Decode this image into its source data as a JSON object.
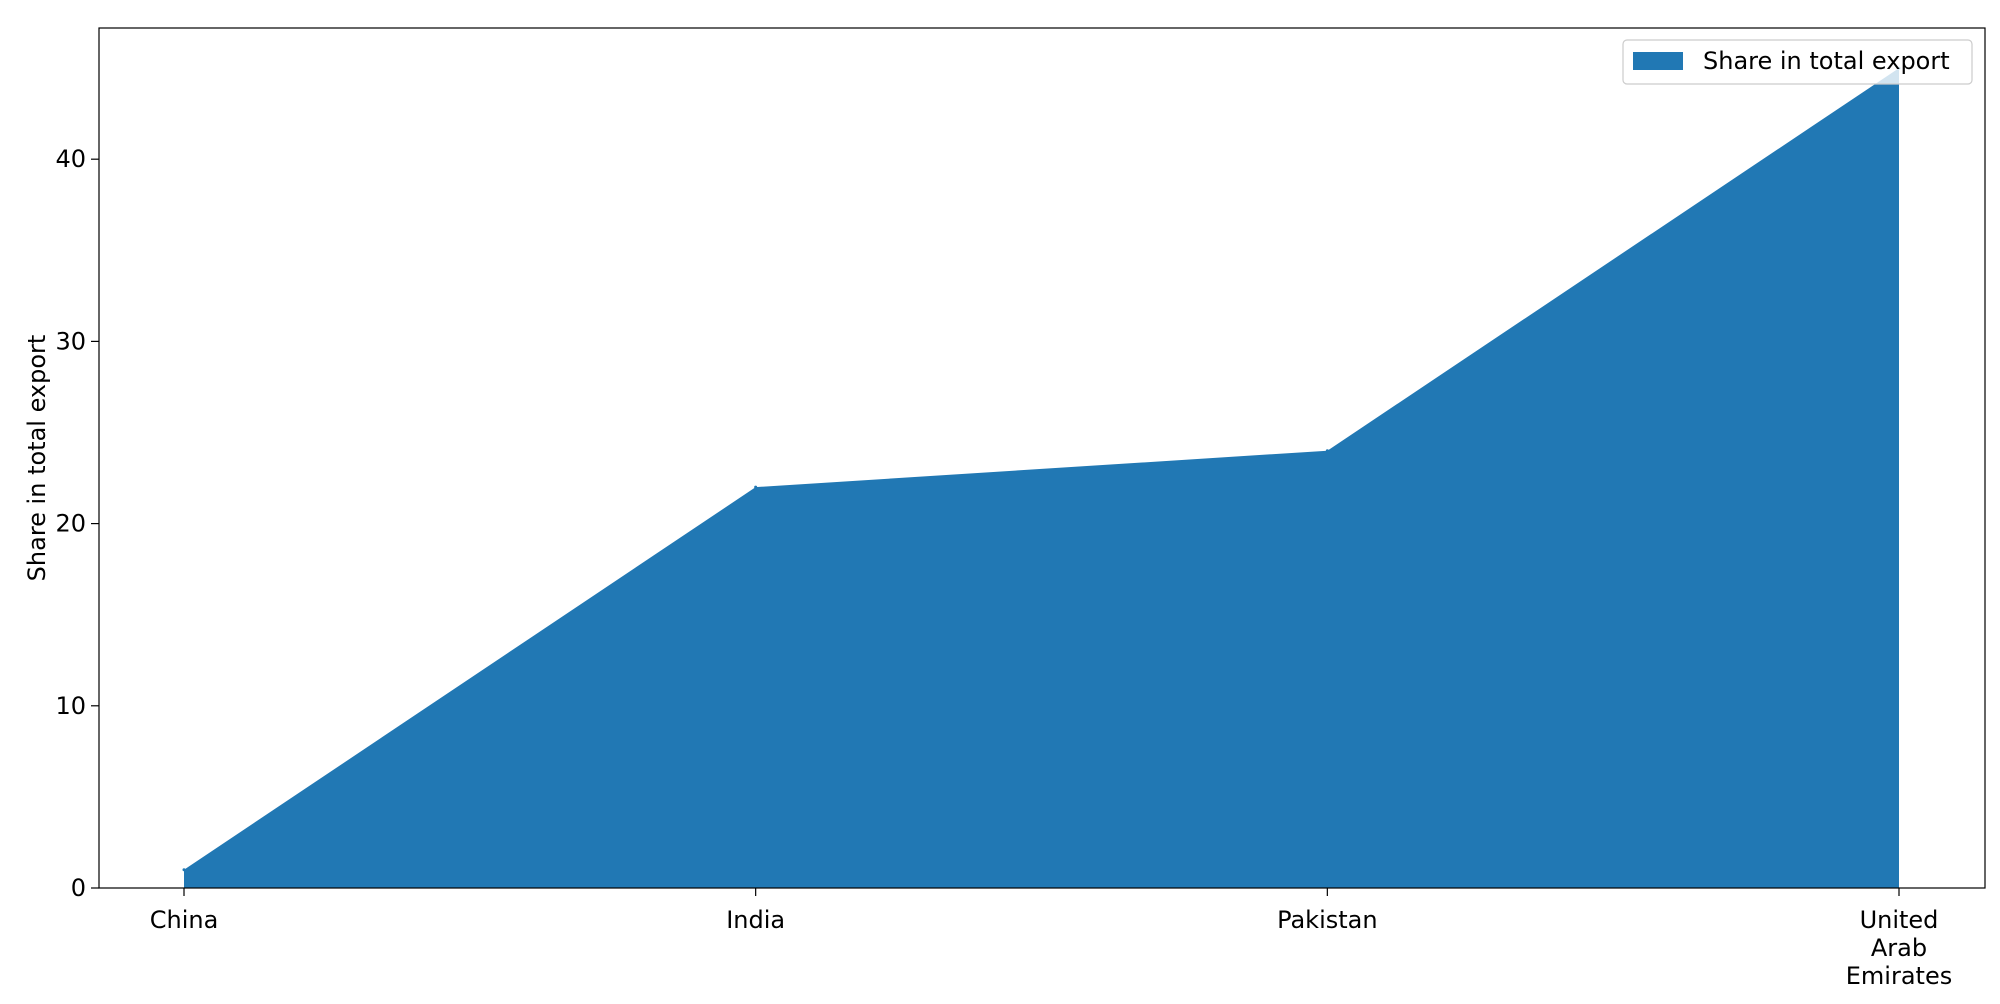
{
  "chart_data": {
    "type": "area",
    "categories": [
      "China",
      "India",
      "Pakistan",
      "United\nArab\nEmirates"
    ],
    "series": [
      {
        "name": "Share in total export",
        "values": [
          1,
          22,
          24,
          45
        ],
        "color": "#2178b4"
      }
    ],
    "ylabel": "Share in total export",
    "xlabel": "",
    "ylim": [
      0,
      47.2
    ],
    "yticks": [
      0,
      10,
      20,
      30,
      40
    ],
    "grid": false,
    "legend": {
      "placement": "top-right",
      "entries": [
        "Share in total export"
      ]
    }
  }
}
